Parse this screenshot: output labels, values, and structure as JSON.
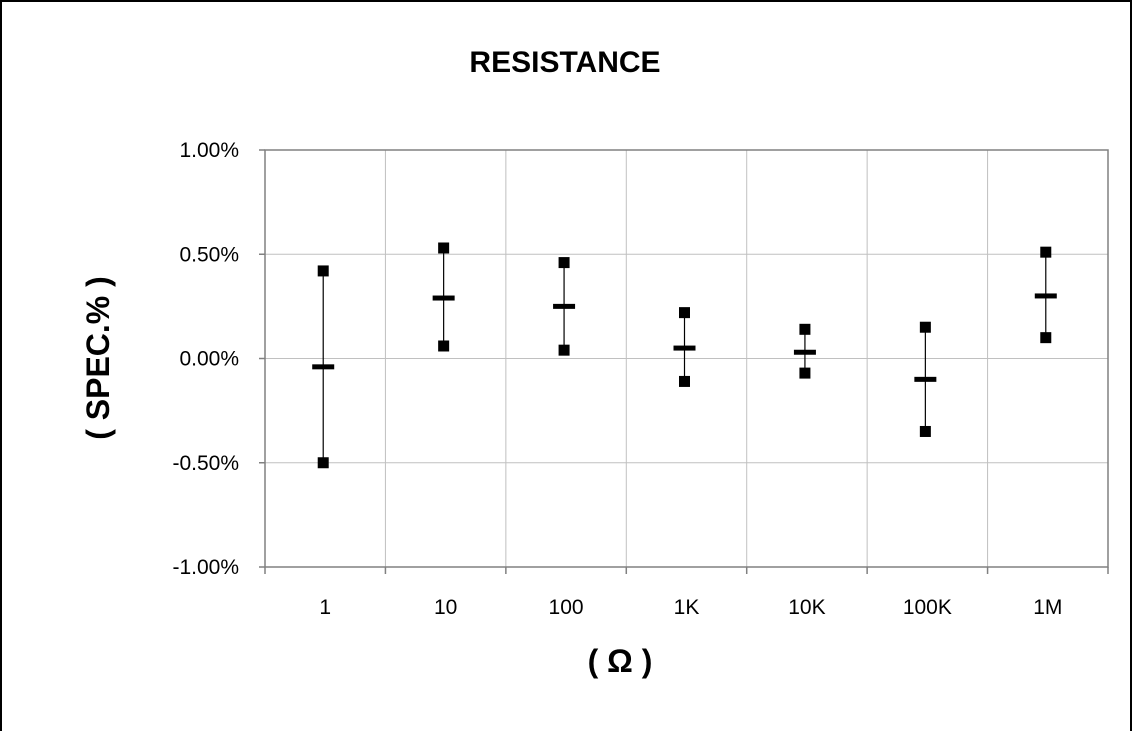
{
  "chart_data": {
    "type": "error-bar",
    "title": "RESISTANCE",
    "xlabel": "( Ω )",
    "ylabel": "( SPEC.% )",
    "categories": [
      "1",
      "10",
      "100",
      "1K",
      "10K",
      "100K",
      "1M"
    ],
    "ylim": [
      -1.0,
      1.0
    ],
    "y_ticks": [
      1.0,
      0.5,
      0.0,
      -0.5,
      -1.0
    ],
    "y_tick_labels": [
      "1.00%",
      "0.50%",
      "0.00%",
      "-0.50%",
      "-1.00%"
    ],
    "grid": true,
    "series": [
      {
        "values_mean": [
          -0.04,
          0.29,
          0.25,
          0.05,
          0.03,
          -0.1,
          0.3
        ],
        "values_max": [
          0.42,
          0.53,
          0.46,
          0.22,
          0.14,
          0.15,
          0.51
        ],
        "values_min": [
          -0.5,
          0.06,
          0.04,
          -0.11,
          -0.07,
          -0.35,
          0.1
        ]
      }
    ],
    "colors": {
      "marker": "#000000",
      "grid": "#c0c0c0",
      "axis": "#808080"
    }
  }
}
